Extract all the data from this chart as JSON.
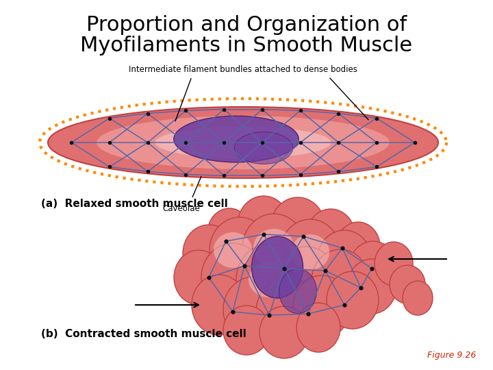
{
  "title_line1": "Proportion and Organization of",
  "title_line2": "Myofilaments in Smooth Muscle",
  "title_fontsize": 22,
  "bg_color": "#ffffff",
  "label_a": "(a)  Relaxed smooth muscle cell",
  "label_b": "(b)  Contracted smooth muscle cell",
  "label_fontsize": 11,
  "annotation_intermediate": "Intermediate filament bundles attached to dense bodies",
  "annotation_caveolae": "Caveolae",
  "fig_caption": "Figure 9.26",
  "fig_caption_color": "#CC2200",
  "salmon_color": "#E07070",
  "salmon_light": "#F0A0A0",
  "salmon_lighter": "#F8C8C8",
  "dark_salmon": "#C04040",
  "purple_color": "#7040A0",
  "purple_dark": "#4A1A6A",
  "blue_net": "#5566AA",
  "orange_border": "#FF8800",
  "dark_node": "#111111"
}
